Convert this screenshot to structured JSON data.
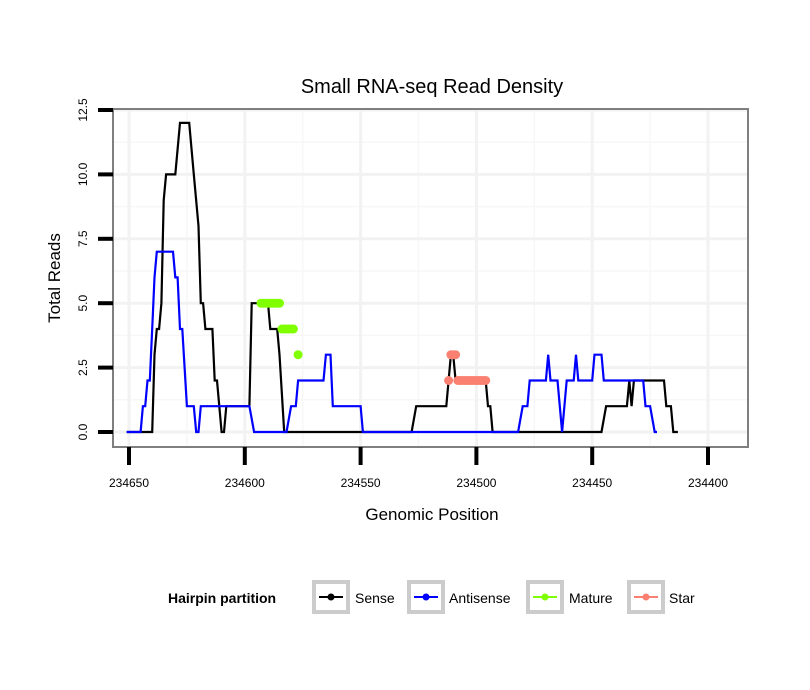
{
  "chart_data": {
    "type": "line",
    "title": "Small RNA-seq Read Density",
    "xlabel": "Genomic Position",
    "ylabel": "Total Reads",
    "xlim": [
      234657,
      234393
    ],
    "x_reversed": true,
    "ylim": [
      0,
      12.5
    ],
    "x_ticks": [
      234650,
      234600,
      234550,
      234500,
      234450,
      234400
    ],
    "x_tick_labels": [
      "234650",
      "234600",
      "234550",
      "234500",
      "234450",
      "234400"
    ],
    "y_ticks": [
      0,
      2.5,
      5,
      7.5,
      10,
      12.5
    ],
    "y_tick_labels": [
      "0.0",
      "2.5",
      "5.0",
      "7.5",
      "10.0",
      "12.5"
    ],
    "grid": true,
    "legend": {
      "title": "Hairpin partition",
      "position": "bottom",
      "entries": [
        {
          "name": "Sense",
          "color": "#000000"
        },
        {
          "name": "Antisense",
          "color": "#0000ff"
        },
        {
          "name": "Mature",
          "color": "#7fff00"
        },
        {
          "name": "Star",
          "color": "#fa8072"
        }
      ]
    },
    "series": [
      {
        "name": "Sense",
        "color": "#000000",
        "style": "line",
        "points": [
          [
            234651,
            0
          ],
          [
            234649,
            0
          ],
          [
            234643,
            0
          ],
          [
            234640,
            0
          ],
          [
            234639,
            3
          ],
          [
            234638,
            4
          ],
          [
            234637,
            4
          ],
          [
            234636,
            5
          ],
          [
            234635,
            9
          ],
          [
            234634,
            10
          ],
          [
            234631,
            10
          ],
          [
            234630,
            10
          ],
          [
            234628,
            12
          ],
          [
            234625,
            12
          ],
          [
            234624,
            12
          ],
          [
            234622,
            10
          ],
          [
            234620,
            8
          ],
          [
            234619,
            5
          ],
          [
            234618,
            5
          ],
          [
            234617,
            4
          ],
          [
            234614,
            4
          ],
          [
            234613,
            2
          ],
          [
            234612,
            2
          ],
          [
            234610,
            0
          ],
          [
            234609,
            0
          ],
          [
            234608,
            1
          ],
          [
            234600,
            1
          ],
          [
            234598,
            1
          ],
          [
            234597,
            5
          ],
          [
            234592,
            5
          ],
          [
            234590,
            5
          ],
          [
            234589,
            4
          ],
          [
            234586,
            4
          ],
          [
            234585,
            3
          ],
          [
            234583,
            0
          ],
          [
            234578,
            0
          ],
          [
            234560,
            0
          ],
          [
            234540,
            0
          ],
          [
            234528,
            0
          ],
          [
            234526,
            1
          ],
          [
            234518,
            1
          ],
          [
            234513,
            1
          ],
          [
            234512,
            2
          ],
          [
            234511,
            3
          ],
          [
            234510,
            3
          ],
          [
            234509,
            2
          ],
          [
            234500,
            2
          ],
          [
            234496,
            2
          ],
          [
            234495,
            1
          ],
          [
            234494,
            1
          ],
          [
            234493,
            0
          ],
          [
            234480,
            0
          ],
          [
            234460,
            0
          ],
          [
            234446,
            0
          ],
          [
            234444,
            1
          ],
          [
            234438,
            1
          ],
          [
            234435,
            1
          ],
          [
            234434,
            2
          ],
          [
            234433,
            1
          ],
          [
            234432,
            2
          ],
          [
            234425,
            2
          ],
          [
            234419,
            2
          ],
          [
            234418,
            1
          ],
          [
            234417,
            1
          ],
          [
            234416,
            1
          ],
          [
            234415,
            0
          ],
          [
            234413,
            0
          ]
        ]
      },
      {
        "name": "Antisense",
        "color": "#0000ff",
        "style": "line",
        "points": [
          [
            234651,
            0
          ],
          [
            234645,
            0
          ],
          [
            234644,
            1
          ],
          [
            234643,
            1
          ],
          [
            234642,
            2
          ],
          [
            234641,
            2
          ],
          [
            234640,
            4
          ],
          [
            234639,
            6
          ],
          [
            234638,
            7
          ],
          [
            234632,
            7
          ],
          [
            234631,
            7
          ],
          [
            234630,
            6
          ],
          [
            234629,
            6
          ],
          [
            234628,
            4
          ],
          [
            234627,
            4
          ],
          [
            234625,
            1
          ],
          [
            234622,
            1
          ],
          [
            234621,
            0
          ],
          [
            234620,
            0
          ],
          [
            234619,
            1
          ],
          [
            234600,
            1
          ],
          [
            234598,
            1
          ],
          [
            234596,
            0
          ],
          [
            234582,
            0
          ],
          [
            234580,
            1
          ],
          [
            234578,
            1
          ],
          [
            234577,
            2
          ],
          [
            234566,
            2
          ],
          [
            234565,
            3
          ],
          [
            234563,
            3
          ],
          [
            234562,
            1
          ],
          [
            234553,
            1
          ],
          [
            234550,
            1
          ],
          [
            234549,
            0
          ],
          [
            234530,
            0
          ],
          [
            234500,
            0
          ],
          [
            234482,
            0
          ],
          [
            234480,
            1
          ],
          [
            234478,
            1
          ],
          [
            234477,
            2
          ],
          [
            234470,
            2
          ],
          [
            234469,
            3
          ],
          [
            234468,
            2
          ],
          [
            234465,
            2
          ],
          [
            234463,
            0
          ],
          [
            234462,
            1
          ],
          [
            234461,
            2
          ],
          [
            234458,
            2
          ],
          [
            234457,
            3
          ],
          [
            234456,
            2
          ],
          [
            234450,
            2
          ],
          [
            234449,
            3
          ],
          [
            234446,
            3
          ],
          [
            234445,
            2
          ],
          [
            234432,
            2
          ],
          [
            234428,
            2
          ],
          [
            234427,
            1
          ],
          [
            234425,
            1
          ],
          [
            234423,
            0
          ],
          [
            234422,
            0
          ]
        ]
      },
      {
        "name": "Mature",
        "color": "#7fff00",
        "style": "points",
        "points": [
          [
            234593,
            5
          ],
          [
            234592,
            5
          ],
          [
            234591,
            5
          ],
          [
            234590,
            5
          ],
          [
            234589,
            5
          ],
          [
            234588,
            5
          ],
          [
            234587,
            5
          ],
          [
            234586,
            5
          ],
          [
            234585,
            5
          ],
          [
            234584,
            4
          ],
          [
            234583,
            4
          ],
          [
            234582,
            4
          ],
          [
            234581,
            4
          ],
          [
            234580,
            4
          ],
          [
            234579,
            4
          ],
          [
            234577,
            3
          ]
        ]
      },
      {
        "name": "Star",
        "color": "#fa8072",
        "style": "points",
        "points": [
          [
            234512,
            2
          ],
          [
            234511,
            3
          ],
          [
            234510,
            3
          ],
          [
            234509,
            3
          ],
          [
            234508,
            2
          ],
          [
            234507,
            2
          ],
          [
            234506,
            2
          ],
          [
            234505,
            2
          ],
          [
            234504,
            2
          ],
          [
            234503,
            2
          ],
          [
            234502,
            2
          ],
          [
            234501,
            2
          ],
          [
            234500,
            2
          ],
          [
            234499,
            2
          ],
          [
            234498,
            2
          ],
          [
            234497,
            2
          ],
          [
            234496,
            2
          ]
        ]
      }
    ]
  }
}
